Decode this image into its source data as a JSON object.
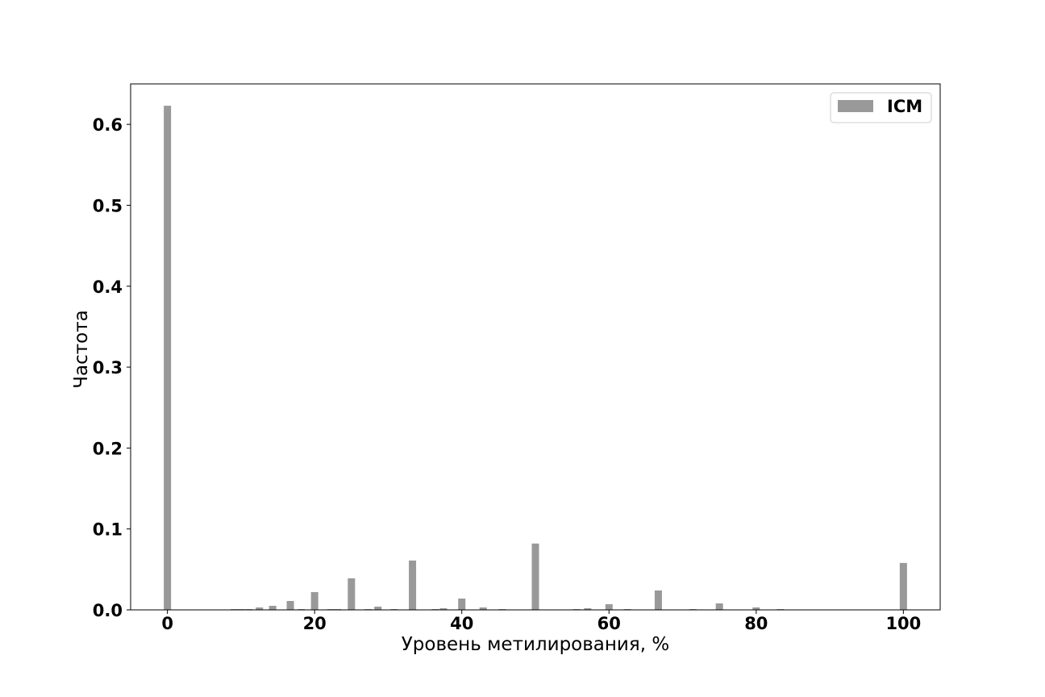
{
  "chart_data": {
    "type": "bar",
    "xlabel": "Уровень метилирования, %",
    "ylabel": "Частота",
    "xlim": [
      -5,
      105
    ],
    "ylim": [
      0,
      0.65
    ],
    "xticks": [
      0,
      20,
      40,
      60,
      80,
      100
    ],
    "xtick_labels": [
      "0",
      "20",
      "40",
      "60",
      "80",
      "100"
    ],
    "yticks": [
      0.0,
      0.1,
      0.2,
      0.3,
      0.4,
      0.5,
      0.6
    ],
    "ytick_labels": [
      "0.0",
      "0.1",
      "0.2",
      "0.3",
      "0.4",
      "0.5",
      "0.6"
    ],
    "grid": false,
    "legend_position": "top-right",
    "series": [
      {
        "name": "ICM",
        "color": "#999999",
        "x": [
          0,
          9.1,
          10,
          11.1,
          12.5,
          14.3,
          16.7,
          18.2,
          20,
          22.2,
          23.1,
          25,
          27.3,
          28.6,
          30.8,
          33.3,
          36.4,
          37.5,
          40,
          42.9,
          45.5,
          50,
          55.6,
          57.1,
          60,
          62.5,
          66.7,
          71.4,
          75,
          80,
          83.3,
          100
        ],
        "values": [
          0.623,
          0.001,
          0.001,
          0.001,
          0.003,
          0.005,
          0.011,
          0.001,
          0.022,
          0.001,
          0.001,
          0.039,
          0.001,
          0.004,
          0.001,
          0.061,
          0.001,
          0.002,
          0.014,
          0.003,
          0.001,
          0.082,
          0.001,
          0.002,
          0.007,
          0.001,
          0.024,
          0.001,
          0.008,
          0.003,
          0.001,
          0.058
        ]
      }
    ]
  }
}
